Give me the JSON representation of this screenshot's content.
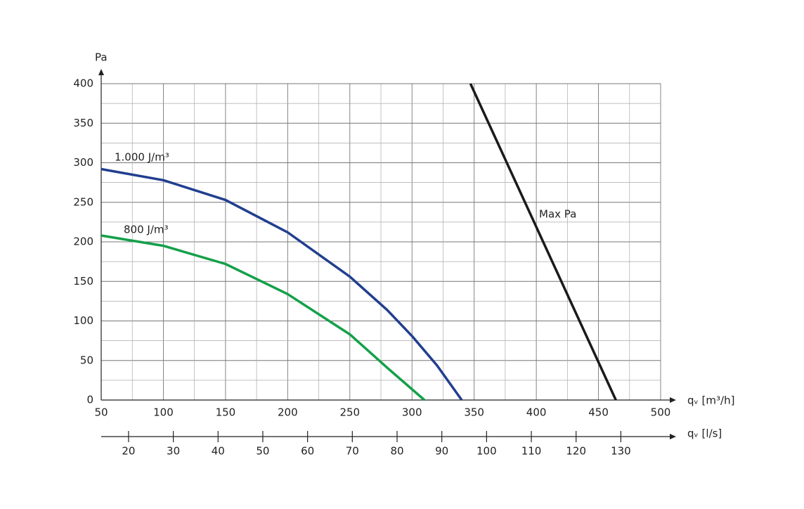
{
  "chart_data": {
    "type": "line",
    "ylabel": "Pa",
    "xlabel": "qᵥ [m³/h]",
    "x2label": "qᵥ [l/s]",
    "xlim": [
      50,
      500
    ],
    "xticks": [
      50,
      100,
      150,
      200,
      250,
      300,
      350,
      400,
      450,
      500
    ],
    "xminor": [
      75,
      125,
      175,
      225,
      275,
      325,
      375,
      425,
      475
    ],
    "ylim": [
      0,
      400
    ],
    "yticks": [
      0,
      50,
      100,
      150,
      200,
      250,
      300,
      350,
      400
    ],
    "yminor": [
      25,
      75,
      125,
      175,
      225,
      275,
      325,
      375
    ],
    "x2lim": [
      13.89,
      138.89
    ],
    "x2ticks": [
      20,
      30,
      40,
      50,
      60,
      70,
      80,
      90,
      100,
      110,
      120,
      130
    ],
    "grid": true,
    "series": [
      {
        "name": "1.000 J/m³",
        "color": "#213e8f",
        "x": [
          50,
          100,
          150,
          200,
          250,
          280,
          300,
          320,
          340
        ],
        "values": [
          292,
          278,
          253,
          212,
          156,
          114,
          81,
          44,
          0
        ]
      },
      {
        "name": "800 J/m³",
        "color": "#14a04a",
        "x": [
          50,
          100,
          150,
          200,
          250,
          280,
          310
        ],
        "values": [
          208,
          195,
          172,
          134,
          83,
          41,
          0
        ]
      },
      {
        "name": "Max Pa",
        "color": "#1a1a1a",
        "x": [
          347,
          464
        ],
        "values": [
          400,
          0
        ]
      }
    ]
  }
}
